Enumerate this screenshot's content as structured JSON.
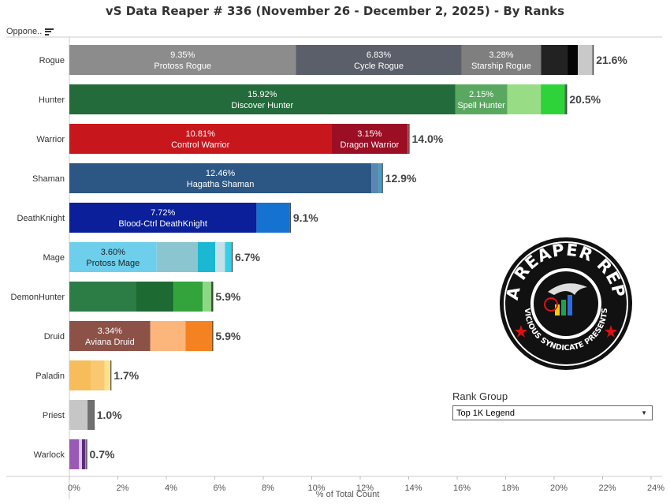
{
  "title": "vS Data Reaper # 336 (November 26 - December 2, 2025) - By Ranks",
  "column_header": "Oppone..",
  "filter": {
    "label": "Rank Group",
    "selected": "Top 1K Legend"
  },
  "logo": {
    "text_top": "DATA REAPER REPORT",
    "text_bottom": "VICIOUS SYNDICATE PRESENTS"
  },
  "chart_data": {
    "type": "bar",
    "orientation": "horizontal",
    "stacked": true,
    "xlabel": "% of Total Count",
    "xlim": [
      0,
      24
    ],
    "xticks": [
      "0%",
      "2%",
      "4%",
      "6%",
      "8%",
      "10%",
      "12%",
      "14%",
      "16%",
      "18%",
      "20%",
      "22%",
      "24%"
    ],
    "categories": [
      {
        "name": "Rogue",
        "total": 21.6,
        "total_label": "21.6%",
        "segments": [
          {
            "value": 9.35,
            "label": "9.35%",
            "archetype": "Protoss Rogue",
            "color": "#8c8c8c"
          },
          {
            "value": 6.83,
            "label": "6.83%",
            "archetype": "Cycle Rogue",
            "color": "#5b5f69"
          },
          {
            "value": 3.28,
            "label": "3.28%",
            "archetype": "Starship Rogue",
            "color": "#7f7f7f"
          },
          {
            "value": 1.08,
            "color": "#222222"
          },
          {
            "value": 0.44,
            "color": "#050505"
          },
          {
            "value": 0.58,
            "color": "#c9c9c9"
          },
          {
            "value": 0.04,
            "color": "#999999"
          }
        ]
      },
      {
        "name": "Hunter",
        "total": 20.5,
        "total_label": "20.5%",
        "segments": [
          {
            "value": 15.92,
            "label": "15.92%",
            "archetype": "Discover Hunter",
            "color": "#236b3b"
          },
          {
            "value": 2.15,
            "label": "2.15%",
            "archetype": "Spell Hunter",
            "color": "#5aa860"
          },
          {
            "value": 1.38,
            "color": "#98dc85"
          },
          {
            "value": 0.98,
            "color": "#2ed33a"
          },
          {
            "value": 0.07,
            "color": "#1e8a2c"
          }
        ]
      },
      {
        "name": "Warrior",
        "total": 14.0,
        "total_label": "14.0%",
        "segments": [
          {
            "value": 10.81,
            "label": "10.81%",
            "archetype": "Control Warrior",
            "color": "#c8161d"
          },
          {
            "value": 3.15,
            "label": "3.15%",
            "archetype": "Dragon Warrior",
            "color": "#9b0e24"
          },
          {
            "value": 0.04,
            "color": "#e25a5a"
          }
        ]
      },
      {
        "name": "Shaman",
        "total": 12.9,
        "total_label": "12.9%",
        "segments": [
          {
            "value": 12.46,
            "label": "12.46%",
            "archetype": "Hagatha Shaman",
            "color": "#2c5784"
          },
          {
            "value": 0.3,
            "color": "#5a86b0"
          },
          {
            "value": 0.14,
            "color": "#3fa0c8"
          }
        ]
      },
      {
        "name": "DeathKnight",
        "total": 9.1,
        "total_label": "9.1%",
        "segments": [
          {
            "value": 7.72,
            "label": "7.72%",
            "archetype": "Blood-Ctrl DeathKnight",
            "color": "#0a1f99"
          },
          {
            "value": 1.38,
            "color": "#1672d0"
          }
        ]
      },
      {
        "name": "Mage",
        "total": 6.7,
        "total_label": "6.7%",
        "segments": [
          {
            "value": 3.6,
            "label": "3.60%",
            "archetype": "Protoss Mage",
            "color": "#6dcfec",
            "dark_text": true
          },
          {
            "value": 1.7,
            "color": "#8bc6d0"
          },
          {
            "value": 0.72,
            "color": "#1ab8d2"
          },
          {
            "value": 0.4,
            "color": "#c4e1e8"
          },
          {
            "value": 0.28,
            "color": "#34d0ea"
          }
        ]
      },
      {
        "name": "DemonHunter",
        "total": 5.9,
        "total_label": "5.9%",
        "segments": [
          {
            "value": 2.75,
            "color": "#2c7c46"
          },
          {
            "value": 1.55,
            "color": "#1e6a33"
          },
          {
            "value": 1.2,
            "color": "#33a33b"
          },
          {
            "value": 0.35,
            "color": "#8cd883"
          },
          {
            "value": 0.05,
            "color": "#2a6a35"
          }
        ]
      },
      {
        "name": "Druid",
        "total": 5.9,
        "total_label": "5.9%",
        "segments": [
          {
            "value": 3.34,
            "label": "3.34%",
            "archetype": "Aviana Druid",
            "color": "#8c5248"
          },
          {
            "value": 1.45,
            "color": "#fcb57a"
          },
          {
            "value": 1.11,
            "color": "#f58220"
          }
        ]
      },
      {
        "name": "Paladin",
        "total": 1.7,
        "total_label": "1.7%",
        "segments": [
          {
            "value": 0.9,
            "color": "#f6bd5a"
          },
          {
            "value": 0.55,
            "color": "#f9c870"
          },
          {
            "value": 0.25,
            "color": "#fbe28c"
          }
        ]
      },
      {
        "name": "Priest",
        "total": 1.0,
        "total_label": "1.0%",
        "segments": [
          {
            "value": 0.75,
            "color": "#c6c6c6"
          },
          {
            "value": 0.25,
            "color": "#707070"
          }
        ]
      },
      {
        "name": "Warlock",
        "total": 0.7,
        "total_label": "0.7%",
        "segments": [
          {
            "value": 0.4,
            "color": "#9b59b6"
          },
          {
            "value": 0.12,
            "color": "#ddc9ea"
          },
          {
            "value": 0.13,
            "color": "#5b2a7a"
          },
          {
            "value": 0.05,
            "color": "#b48ac6"
          }
        ]
      }
    ]
  }
}
